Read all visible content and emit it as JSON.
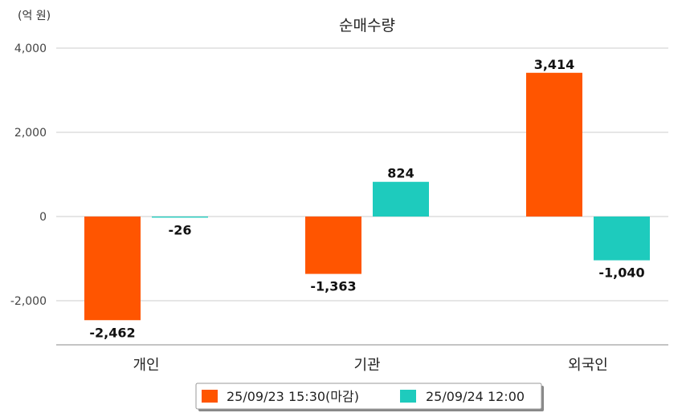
{
  "chart_data": {
    "type": "bar",
    "title": "순매수량",
    "unit_label": "(억 원)",
    "categories": [
      "개인",
      "기관",
      "외국인"
    ],
    "series": [
      {
        "name": "25/09/23 15:30(마감)",
        "color": "#ff5500",
        "values": [
          -2462,
          -1363,
          3414
        ],
        "labels": [
          "-2,462",
          "-1,363",
          "3,414"
        ]
      },
      {
        "name": "25/09/24 12:00",
        "color": "#1ecbbd",
        "values": [
          -26,
          824,
          -1040
        ],
        "labels": [
          "-26",
          "824",
          "-1,040"
        ]
      }
    ],
    "yticks": [
      4000,
      2000,
      0,
      -2000
    ],
    "ytick_labels": [
      "4,000",
      "2,000",
      "0",
      "-2,000"
    ],
    "ylim": [
      -3050,
      4000
    ],
    "grid": true,
    "legend_position": "bottom"
  }
}
